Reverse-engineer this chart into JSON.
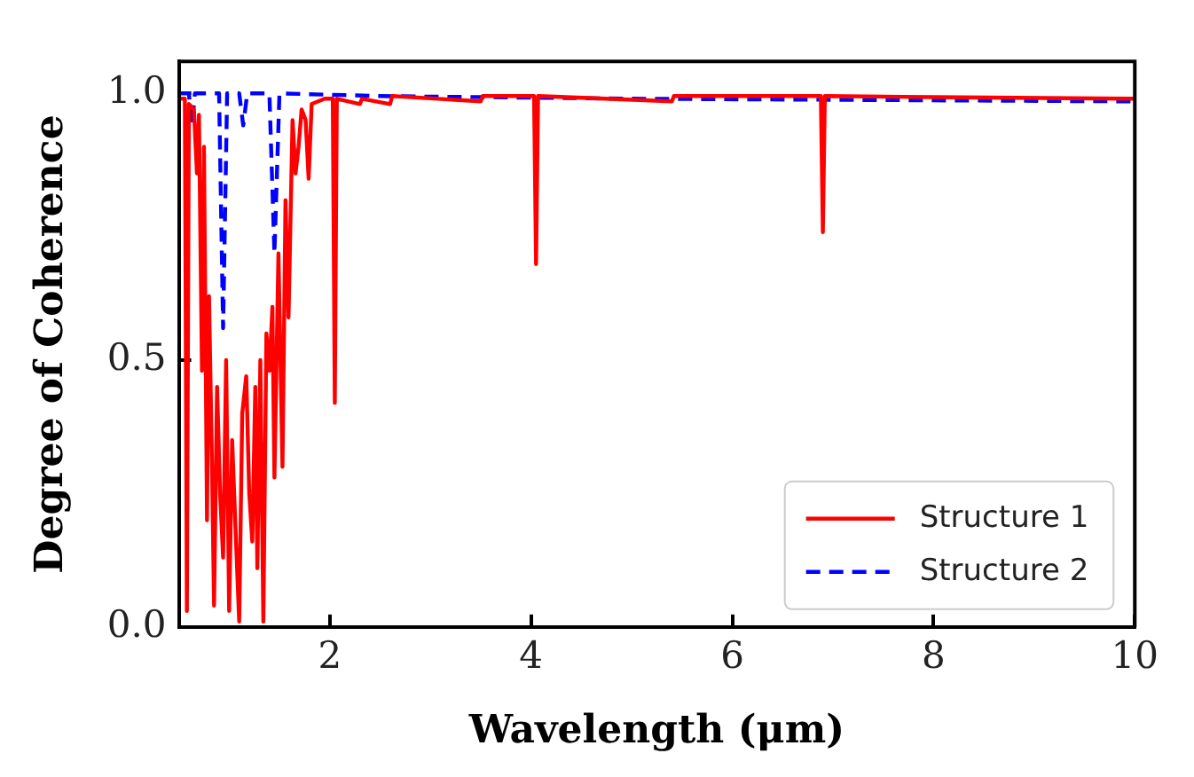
{
  "chart_data": {
    "type": "line",
    "xlabel": "Wavelength (μm)",
    "ylabel": "Degree of Coherence",
    "xlim": [
      0.5,
      10
    ],
    "ylim": [
      0,
      1.06
    ],
    "xticks": [
      2,
      4,
      6,
      8,
      10
    ],
    "yticks": [
      {
        "value": 0,
        "label": "0.0"
      },
      {
        "value": 0.5,
        "label": "0.5"
      },
      {
        "value": 1,
        "label": "1.0"
      }
    ],
    "legend": "bottom right",
    "grid": false,
    "marker": "none",
    "series": [
      {
        "name": "Structure 1",
        "color": "#ff0000",
        "line_style": "solid",
        "x": [
          0.52,
          0.56,
          0.58,
          0.6,
          0.65,
          0.68,
          0.7,
          0.73,
          0.75,
          0.78,
          0.8,
          0.83,
          0.85,
          0.88,
          0.91,
          0.94,
          0.97,
          1.0,
          1.03,
          1.06,
          1.1,
          1.13,
          1.17,
          1.2,
          1.23,
          1.26,
          1.28,
          1.31,
          1.34,
          1.37,
          1.4,
          1.43,
          1.45,
          1.49,
          1.53,
          1.56,
          1.59,
          1.63,
          1.66,
          1.69,
          1.72,
          1.76,
          1.79,
          1.82,
          1.95,
          2.03,
          2.05,
          2.07,
          2.3,
          2.32,
          2.6,
          2.62,
          3.5,
          3.52,
          4.03,
          4.05,
          4.07,
          5.4,
          5.42,
          6.88,
          6.9,
          6.92,
          8.0,
          10
        ],
        "values": [
          0.99,
          0.99,
          0.03,
          0.98,
          0.97,
          0.85,
          0.96,
          0.48,
          0.9,
          0.2,
          0.62,
          0.3,
          0.04,
          0.45,
          0.25,
          0.13,
          0.5,
          0.03,
          0.35,
          0.2,
          0.01,
          0.4,
          0.47,
          0.25,
          0.16,
          0.45,
          0.11,
          0.5,
          0.01,
          0.55,
          0.48,
          0.6,
          0.28,
          0.7,
          0.3,
          0.8,
          0.58,
          0.95,
          0.85,
          0.9,
          0.97,
          0.95,
          0.84,
          0.98,
          0.99,
          0.99,
          0.42,
          0.99,
          0.98,
          0.99,
          0.98,
          0.995,
          0.985,
          0.995,
          0.995,
          0.68,
          0.995,
          0.985,
          0.995,
          0.995,
          0.74,
          0.995,
          0.993,
          0.99
        ]
      },
      {
        "name": "Structure 2",
        "color": "#0000ff",
        "line_style": "dashed",
        "x": [
          0.52,
          0.6,
          0.63,
          0.66,
          0.9,
          0.94,
          0.98,
          1.1,
          1.14,
          1.18,
          1.4,
          1.45,
          1.5,
          2.5,
          5,
          10
        ],
        "values": [
          1.0,
          1.0,
          0.94,
          1.0,
          1.0,
          0.56,
          1.0,
          1.0,
          0.94,
          1.0,
          1.0,
          0.7,
          1.0,
          0.995,
          0.99,
          0.985
        ]
      }
    ]
  }
}
